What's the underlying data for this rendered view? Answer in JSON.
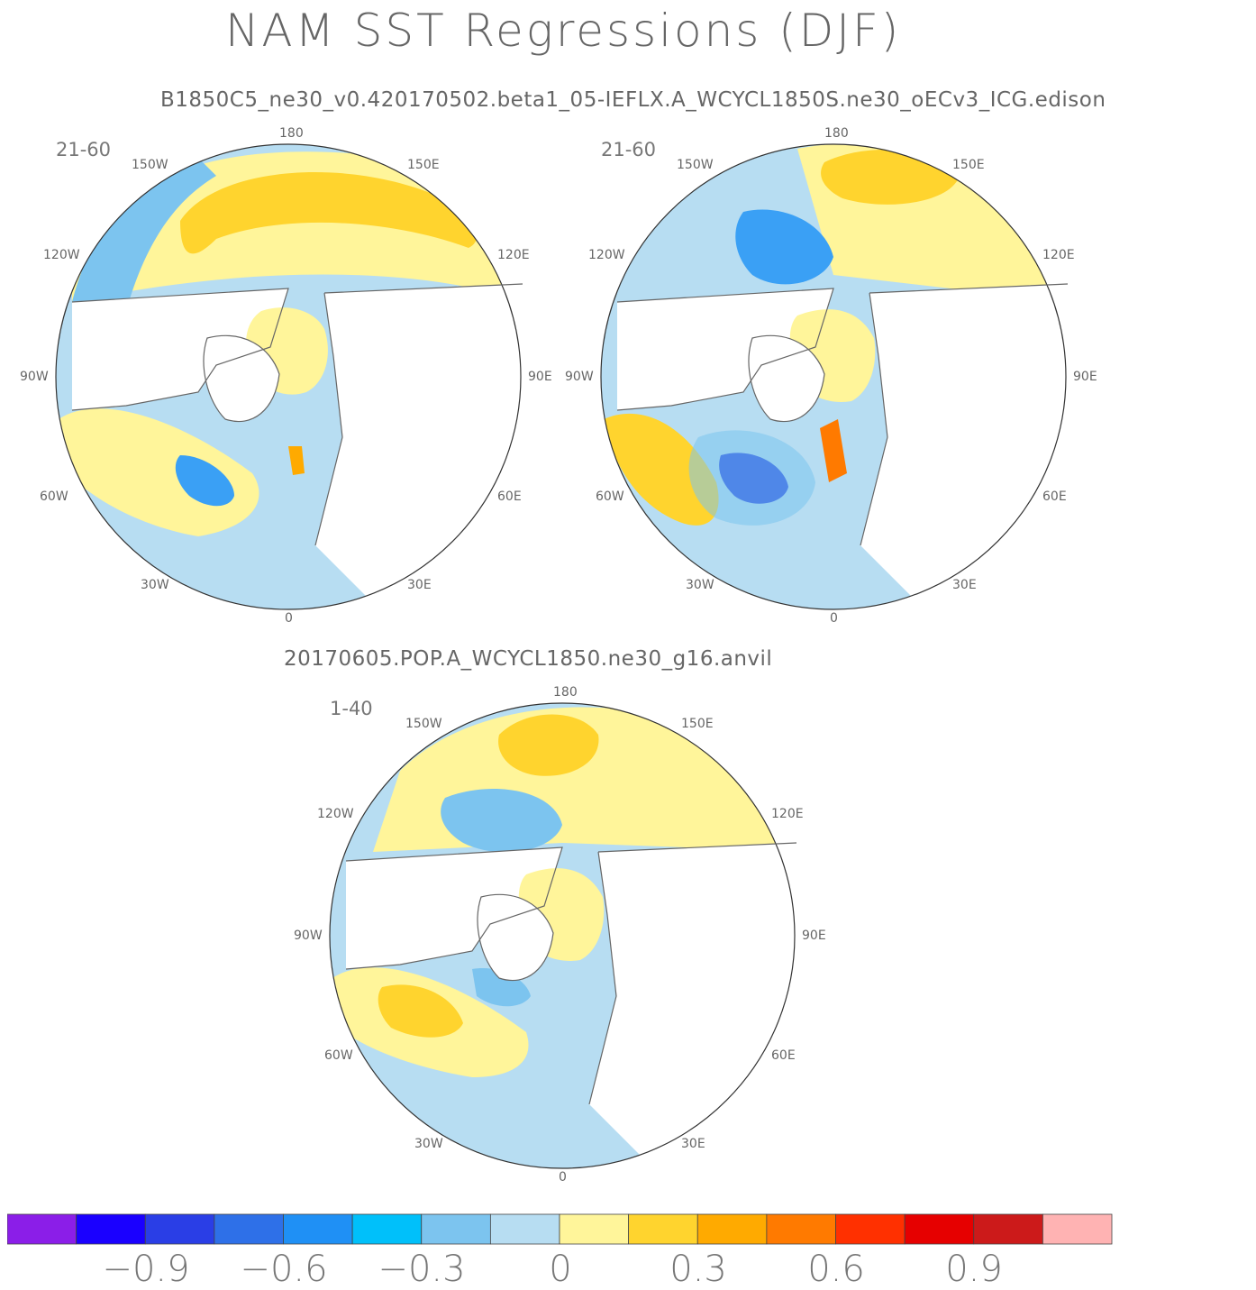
{
  "title": "NAM SST Regressions (DJF)",
  "subtitle_top": "B1850C5_ne30_v0.420170502.beta1_05-IEFLX.A_WCYCL1850S.ne30_oECv3_ICG.edison",
  "subtitle_bottom": "20170605.POP.A_WCYCL1850.ne30_g16.anvil",
  "lon_labels": [
    "180",
    "150E",
    "120E",
    "90E",
    "60E",
    "30E",
    "0",
    "30W",
    "60W",
    "90W",
    "120W",
    "150W"
  ],
  "panels": [
    {
      "id": "left",
      "years": "21-60"
    },
    {
      "id": "right",
      "years": "21-60"
    },
    {
      "id": "bottom",
      "years": "1-40"
    }
  ],
  "colors": {
    "neg3": "#1a3de0",
    "neg2": "#3aa0f5",
    "neg1": "#7cc4ef",
    "neg0": "#b7ddf2",
    "pos0": "#fff59a",
    "pos1": "#ffd42e",
    "pos2": "#ffaa00",
    "pos3": "#ff7a00",
    "pos4": "#ff2a00",
    "land": "#ffffff",
    "coast": "#666666"
  },
  "colorbar": {
    "colors": [
      "#8b1ee8",
      "#1a00ff",
      "#2a3ee6",
      "#2e70e8",
      "#1f90f5",
      "#00c0fa",
      "#7cc4ef",
      "#b7ddf2",
      "#fff59a",
      "#ffd42e",
      "#ffaa00",
      "#ff7a00",
      "#ff3000",
      "#e60000",
      "#cc1a1a",
      "#ffb3b3"
    ],
    "labels": [
      "−0.9",
      "−0.6",
      "−0.3",
      "0",
      "0.3",
      "0.6",
      "0.9"
    ]
  }
}
